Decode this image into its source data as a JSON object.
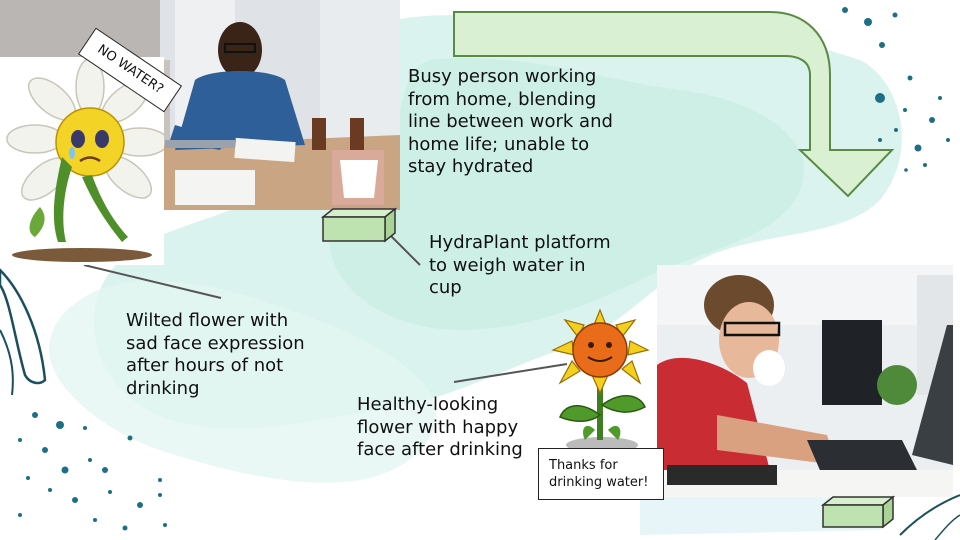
{
  "captions": {
    "busy_person": "Busy person working from home, blending line between work and home life; unable to stay hydrated",
    "platform": "HydraPlant platform to weigh water in cup",
    "wilted": "Wilted flower with sad face expression after hours of not drinking",
    "healthy": "Healthy-looking flower with happy face after drinking"
  },
  "bubbles": {
    "no_water": "NO WATER?",
    "thanks": "Thanks for drinking water!"
  },
  "colors": {
    "arrow_fill": "#d9f0d2",
    "arrow_stroke": "#5a8a44",
    "platform_fill": "#bfe3b0",
    "watercolor": "#cdeee6",
    "dot_accent": "#1d6f86",
    "leaf_line": "#1a4f5e"
  },
  "icons": {
    "arrow": "curved-arrow-down",
    "platform": "scale-platform",
    "wilted_flower": "sad-daisy",
    "happy_flower": "happy-sunflower"
  }
}
